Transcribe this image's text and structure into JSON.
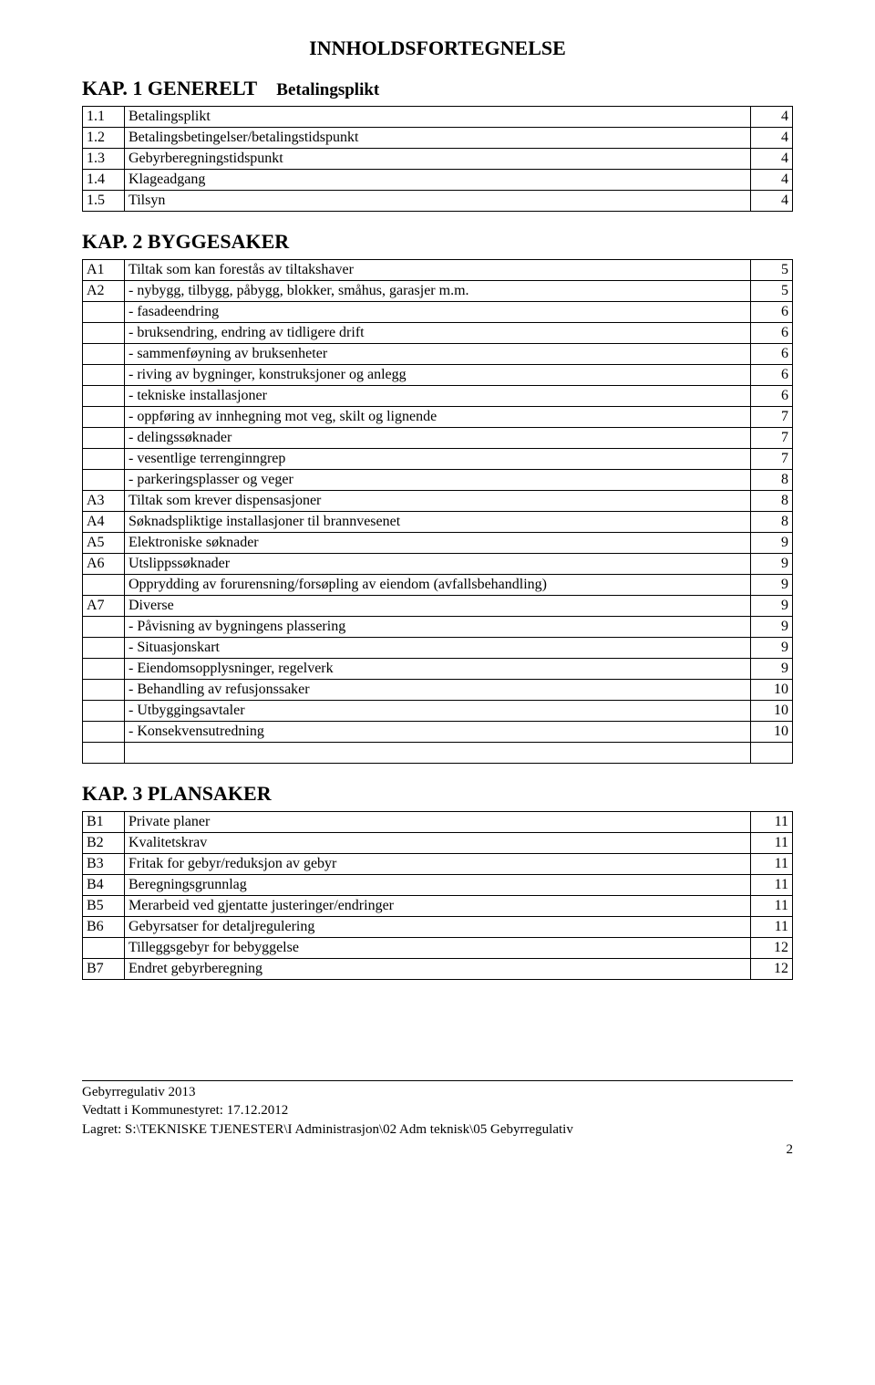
{
  "doc_title": "INNHOLDSFORTEGNELSE",
  "kap1": {
    "heading": "KAP. 1 GENERELT",
    "sub": "Betalingsplikt",
    "rows": [
      {
        "code": "1.1",
        "label": "Betalingsplikt",
        "page": "4"
      },
      {
        "code": "1.2",
        "label": "Betalingsbetingelser/betalingstidspunkt",
        "page": "4"
      },
      {
        "code": "1.3",
        "label": "Gebyrberegningstidspunkt",
        "page": "4"
      },
      {
        "code": "1.4",
        "label": "Klageadgang",
        "page": "4"
      },
      {
        "code": "1.5",
        "label": "Tilsyn",
        "page": "4"
      }
    ]
  },
  "kap2": {
    "heading": "KAP. 2 BYGGESAKER",
    "rows": [
      {
        "code": "A1",
        "label": "Tiltak som kan forestås av tiltakshaver",
        "page": "5"
      },
      {
        "code": "A2",
        "label": "- nybygg, tilbygg, påbygg, blokker, småhus, garasjer m.m.",
        "page": "5"
      },
      {
        "code": "",
        "label": "- fasadeendring",
        "page": "6"
      },
      {
        "code": "",
        "label": "- bruksendring, endring av tidligere drift",
        "page": "6"
      },
      {
        "code": "",
        "label": "- sammenføyning av bruksenheter",
        "page": "6"
      },
      {
        "code": "",
        "label": "- riving av bygninger, konstruksjoner og anlegg",
        "page": "6"
      },
      {
        "code": "",
        "label": "- tekniske installasjoner",
        "page": "6"
      },
      {
        "code": "",
        "label": "- oppføring av innhegning mot veg, skilt og lignende",
        "page": "7"
      },
      {
        "code": "",
        "label": "- delingssøknader",
        "page": "7"
      },
      {
        "code": "",
        "label": "- vesentlige terrenginngrep",
        "page": "7"
      },
      {
        "code": "",
        "label": "- parkeringsplasser og veger",
        "page": "8"
      },
      {
        "code": "A3",
        "label": "Tiltak som krever dispensasjoner",
        "page": "8"
      },
      {
        "code": "A4",
        "label": "Søknadspliktige installasjoner til brannvesenet",
        "page": "8"
      },
      {
        "code": "A5",
        "label": "Elektroniske søknader",
        "page": "9"
      },
      {
        "code": "A6",
        "label": "Utslippssøknader",
        "page": "9"
      },
      {
        "code": "",
        "label": "Opprydding av forurensning/forsøpling av eiendom (avfallsbehandling)",
        "page": "9"
      },
      {
        "code": "A7",
        "label": "Diverse",
        "page": "9"
      },
      {
        "code": "",
        "label": "- Påvisning av bygningens plassering",
        "page": "9"
      },
      {
        "code": "",
        "label": "- Situasjonskart",
        "page": "9"
      },
      {
        "code": "",
        "label": "- Eiendomsopplysninger, regelverk",
        "page": "9"
      },
      {
        "code": "",
        "label": "- Behandling av refusjonssaker",
        "page": "10"
      },
      {
        "code": "",
        "label": "- Utbyggingsavtaler",
        "page": "10"
      },
      {
        "code": "",
        "label": "- Konsekvensutredning",
        "page": "10"
      },
      {
        "code": "",
        "label": "",
        "page": ""
      }
    ]
  },
  "kap3": {
    "heading": "KAP. 3 PLANSAKER",
    "rows": [
      {
        "code": "B1",
        "label": "Private planer",
        "page": "11"
      },
      {
        "code": "B2",
        "label": "Kvalitetskrav",
        "page": "11"
      },
      {
        "code": "B3",
        "label": "Fritak for gebyr/reduksjon av gebyr",
        "page": "11"
      },
      {
        "code": "B4",
        "label": "Beregningsgrunnlag",
        "page": "11"
      },
      {
        "code": "B5",
        "label": "Merarbeid ved gjentatte justeringer/endringer",
        "page": "11"
      },
      {
        "code": "B6",
        "label": "Gebyrsatser for detaljregulering",
        "page": "11"
      },
      {
        "code": "",
        "label": "Tilleggsgebyr for bebyggelse",
        "page": "12"
      },
      {
        "code": "B7",
        "label": "Endret gebyrberegning",
        "page": "12"
      }
    ]
  },
  "footer": {
    "line1": "Gebyrregulativ 2013",
    "line2": "Vedtatt i Kommunestyret: 17.12.2012",
    "line3": "Lagret: S:\\TEKNISKE TJENESTER\\I Administrasjon\\02 Adm teknisk\\05 Gebyrregulativ",
    "pagenum": "2"
  }
}
